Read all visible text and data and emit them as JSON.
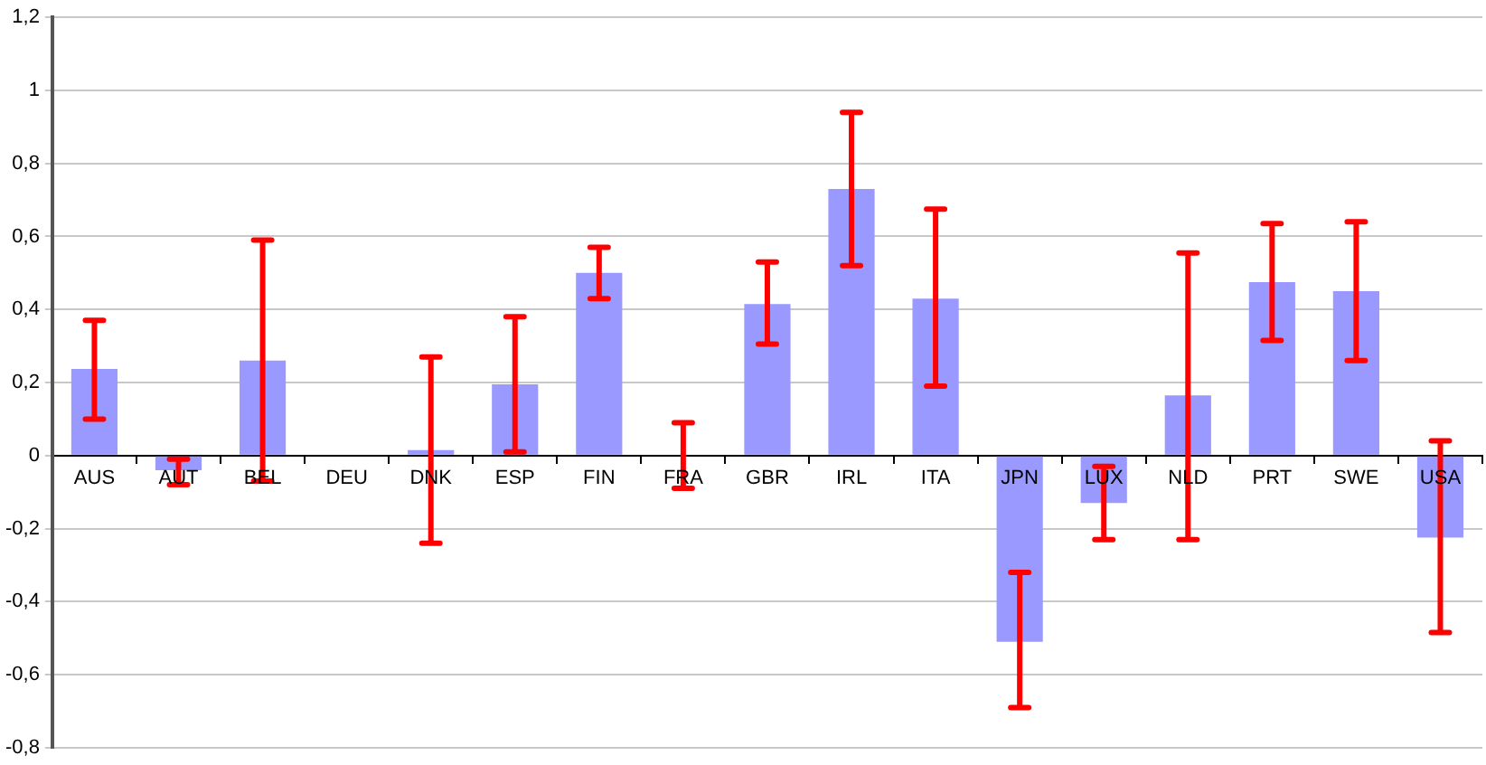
{
  "chart_data": {
    "type": "bar",
    "categories": [
      "AUS",
      "AUT",
      "BEL",
      "DEU",
      "DNK",
      "ESP",
      "FIN",
      "FRA",
      "GBR",
      "IRL",
      "ITA",
      "JPN",
      "LUX",
      "NLD",
      "PRT",
      "SWE",
      "USA"
    ],
    "values": [
      0.237,
      -0.04,
      0.26,
      0,
      0.015,
      0.195,
      0.5,
      0,
      0.415,
      0.73,
      0.43,
      -0.51,
      -0.13,
      0.165,
      0.475,
      0.45,
      -0.225
    ],
    "errors": [
      [
        0.1,
        0.37
      ],
      [
        -0.08,
        -0.01
      ],
      [
        -0.07,
        0.59
      ],
      null,
      [
        -0.24,
        0.27
      ],
      [
        0.01,
        0.38
      ],
      [
        0.43,
        0.57
      ],
      [
        -0.09,
        0.09
      ],
      [
        0.305,
        0.53
      ],
      [
        0.52,
        0.94
      ],
      [
        0.19,
        0.675
      ],
      [
        -0.69,
        -0.32
      ],
      [
        -0.23,
        -0.03
      ],
      [
        -0.23,
        0.555
      ],
      [
        0.315,
        0.635
      ],
      [
        0.26,
        0.64
      ],
      [
        -0.485,
        0.04
      ]
    ],
    "color": "#9999ff",
    "ylim": [
      -0.8,
      1.2
    ],
    "yticks": [
      {
        "value": -0.8,
        "label": "-0,8"
      },
      {
        "value": -0.6,
        "label": "-0,6"
      },
      {
        "value": -0.4,
        "label": "-0,4"
      },
      {
        "value": -0.2,
        "label": "-0,2"
      },
      0,
      {
        "value": 0.2,
        "label": "0,2"
      },
      {
        "value": 0.4,
        "label": "0,4"
      },
      {
        "value": 0.6,
        "label": "0,6"
      },
      {
        "value": 0.8,
        "label": "0,8"
      },
      1,
      {
        "value": 1.2,
        "label": "1,2"
      }
    ],
    "grid": "y"
  }
}
